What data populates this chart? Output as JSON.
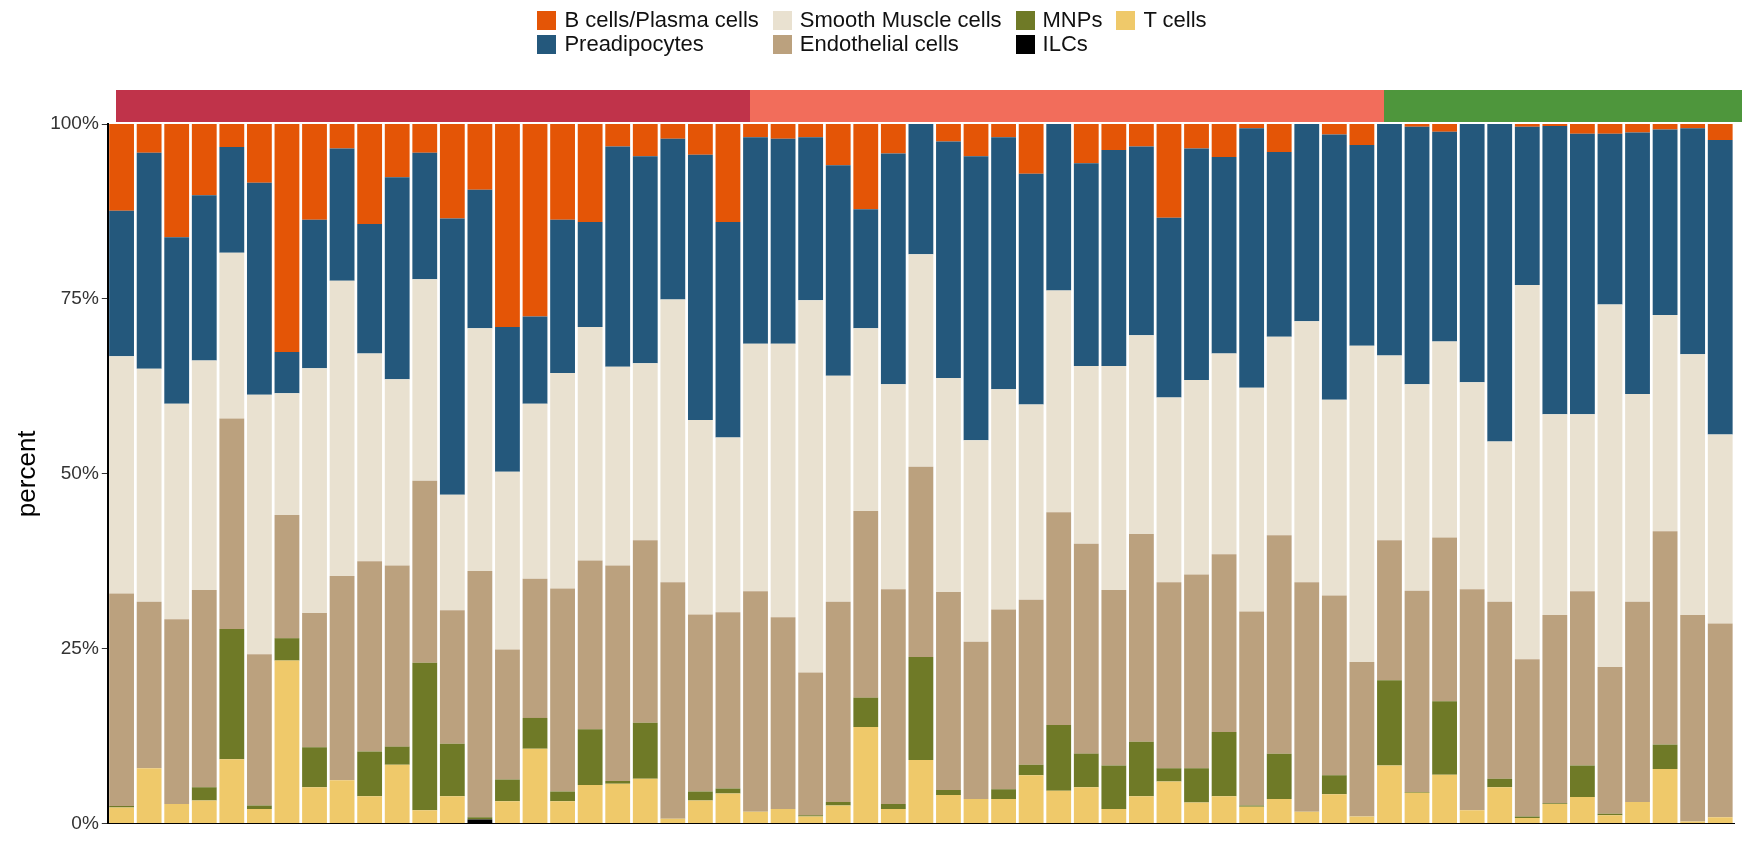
{
  "chart_data": {
    "type": "bar",
    "stacked": true,
    "ylabel": "percent",
    "legend": "top",
    "grid": false,
    "categories": [
      null,
      null,
      null,
      null,
      null,
      null,
      null,
      null,
      null,
      null,
      null,
      null,
      null,
      null,
      null,
      null,
      null,
      null,
      null,
      null,
      null,
      null,
      null,
      null,
      null,
      null,
      null,
      null,
      null,
      null,
      null,
      null,
      null,
      null,
      null,
      null,
      null,
      null,
      null,
      null,
      null,
      null,
      null,
      null,
      null,
      null,
      null,
      null,
      null,
      null,
      null,
      null,
      null,
      null,
      null,
      null,
      null,
      null,
      null
    ],
    "ylim": [
      0,
      100
    ],
    "yticks": [
      {
        "value": 0,
        "label": "0%"
      },
      {
        "value": 25,
        "label": "25%"
      },
      {
        "value": 50,
        "label": "50%"
      },
      {
        "value": 75,
        "label": "75%"
      },
      {
        "value": 100,
        "label": "100%"
      }
    ],
    "series": [
      {
        "name": "T cells",
        "color": "#efc96a",
        "values": [
          2.3,
          7.9,
          2.8,
          3.3,
          9.2,
          2.1,
          23.3,
          5.2,
          6.2,
          3.9,
          8.4,
          1.9,
          3.9,
          0,
          3.2,
          10.7,
          3.2,
          5.5,
          5.7,
          6.4,
          0.7,
          3.3,
          4.3,
          1.7,
          2.1,
          1.0,
          2.6,
          13.8,
          2.1,
          9.1,
          4.1,
          3.5,
          3.5,
          6.9,
          4.7,
          5.2,
          2.1,
          3.9,
          6.0,
          3.0,
          3.9,
          2.4,
          3.5,
          1.7,
          4.2,
          1.0,
          8.3,
          4.4,
          7.0,
          1.9,
          5.2,
          0.8,
          2.8,
          3.8,
          1.2,
          3.1,
          7.8,
          0.3,
          0.9
        ]
      },
      {
        "name": "ILCs",
        "color": "#000000",
        "values": [
          0,
          0,
          0,
          0,
          0,
          0,
          0,
          0,
          0,
          0,
          0,
          0,
          0,
          0.6,
          0,
          0,
          0,
          0,
          0,
          0,
          0,
          0,
          0,
          0,
          0,
          0,
          0,
          0,
          0,
          0,
          0,
          0,
          0,
          0,
          0,
          0,
          0,
          0,
          0,
          0,
          0,
          0,
          0,
          0,
          0,
          0,
          0,
          0,
          0,
          0,
          0,
          0,
          0,
          0,
          0,
          0,
          0,
          0,
          0
        ]
      },
      {
        "name": "MNPs",
        "color": "#6f7a27",
        "values": [
          0.2,
          0,
          0,
          1.9,
          18.6,
          0.5,
          3.2,
          5.7,
          0,
          6.4,
          2.6,
          21.1,
          7.5,
          0.3,
          3.1,
          4.4,
          1.4,
          8.0,
          0.4,
          8.0,
          0,
          1.3,
          0.7,
          0,
          0,
          0.2,
          0.5,
          4.2,
          0.7,
          14.7,
          0.7,
          0,
          1.4,
          1.5,
          9.4,
          4.8,
          6.2,
          7.8,
          1.9,
          4.9,
          9.2,
          0.2,
          6.5,
          0,
          2.7,
          0,
          12.2,
          0.1,
          10.5,
          0,
          1.2,
          0.2,
          0.1,
          4.5,
          0.2,
          0,
          3.5,
          0,
          0
        ]
      },
      {
        "name": "Endothelial cells",
        "color": "#bba17e",
        "values": [
          30.4,
          23.8,
          26.4,
          28.2,
          30.1,
          21.6,
          17.6,
          19.2,
          29.2,
          27.2,
          25.9,
          26.0,
          19.1,
          35.2,
          18.6,
          19.9,
          29.0,
          24.1,
          30.8,
          26.1,
          33.8,
          25.3,
          25.2,
          31.5,
          27.4,
          20.4,
          28.6,
          26.7,
          30.7,
          27.2,
          28.3,
          22.5,
          25.7,
          23.6,
          30.4,
          30.0,
          25.1,
          29.7,
          26.6,
          27.7,
          25.4,
          27.7,
          31.2,
          32.8,
          25.7,
          22.1,
          20.0,
          28.8,
          23.4,
          31.6,
          25.3,
          22.5,
          26.9,
          24.9,
          21.0,
          28.6,
          30.5,
          29.5,
          27.7
        ]
      },
      {
        "name": "Smooth Muscle cells",
        "color": "#e9e1d0",
        "values": [
          33.9,
          33.3,
          30.8,
          32.8,
          23.7,
          37.1,
          17.4,
          35.0,
          42.2,
          29.7,
          26.6,
          28.8,
          16.5,
          34.7,
          25.4,
          25.0,
          30.8,
          33.4,
          28.4,
          25.3,
          40.4,
          27.8,
          25.0,
          35.4,
          39.1,
          53.2,
          32.3,
          26.1,
          29.3,
          30.4,
          30.6,
          28.8,
          31.5,
          27.9,
          31.7,
          25.4,
          32.0,
          28.4,
          26.4,
          27.8,
          28.7,
          32.0,
          28.4,
          37.3,
          28.0,
          45.2,
          26.4,
          29.5,
          28.0,
          29.6,
          22.9,
          53.5,
          28.7,
          25.3,
          51.8,
          29.7,
          30.9,
          37.3,
          27.0
        ]
      },
      {
        "name": "Preadipocytes",
        "color": "#24587c",
        "values": [
          20.8,
          30.9,
          23.8,
          23.6,
          15.1,
          30.3,
          5.9,
          21.2,
          18.9,
          18.5,
          28.9,
          18.1,
          39.5,
          19.8,
          20.7,
          12.5,
          21.9,
          15.0,
          31.5,
          29.6,
          23.0,
          37.9,
          30.8,
          29.5,
          29.3,
          23.3,
          30.1,
          17.0,
          33.0,
          18.6,
          33.8,
          40.6,
          36.0,
          33.0,
          23.8,
          29.0,
          30.9,
          27.0,
          25.7,
          33.1,
          28.1,
          37.1,
          26.4,
          28.2,
          37.9,
          28.7,
          33.1,
          36.8,
          30.0,
          36.9,
          45.4,
          22.6,
          41.2,
          40.1,
          24.4,
          37.4,
          26.5,
          32.3,
          42.1
        ]
      },
      {
        "name": "B cells/Plasma cells",
        "color": "#e45506",
        "values": [
          12.4,
          4.1,
          16.2,
          10.2,
          3.3,
          8.4,
          32.6,
          13.7,
          3.5,
          14.3,
          7.6,
          4.1,
          13.5,
          9.4,
          29.0,
          27.5,
          13.7,
          14.0,
          3.2,
          4.6,
          2.1,
          4.4,
          14.0,
          1.9,
          2.1,
          1.9,
          5.9,
          12.2,
          4.2,
          0,
          2.5,
          4.6,
          1.9,
          7.1,
          0,
          5.6,
          3.7,
          3.2,
          13.4,
          3.5,
          4.7,
          0.6,
          4.0,
          0,
          1.5,
          3.0,
          0,
          0.4,
          1.1,
          0,
          0,
          0.4,
          0.3,
          1.4,
          1.4,
          1.2,
          0.8,
          0.6,
          2.3
        ]
      }
    ]
  }
}
